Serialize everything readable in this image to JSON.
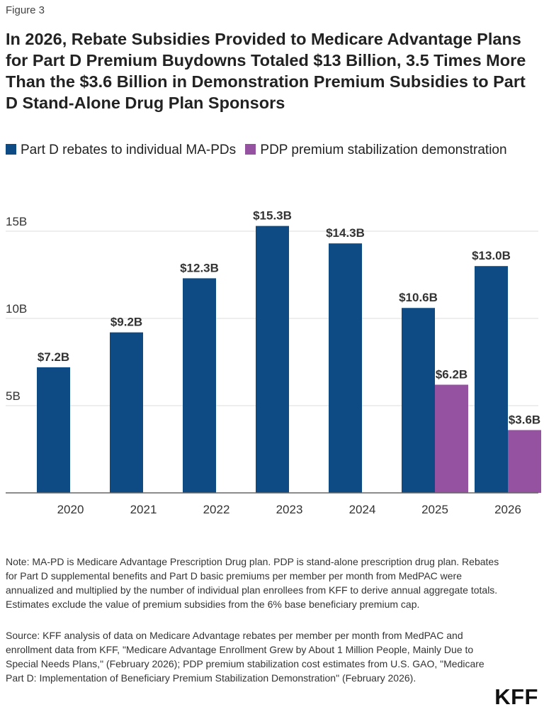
{
  "figure_label": "Figure 3",
  "title": "In 2026, Rebate Subsidies Provided to Medicare Advantage Plans for Part D Premium Buydowns Totaled $13 Billion, 3.5 Times More Than the $3.6 Billion in Demonstration Premium Subsidies to Part D Stand-Alone Drug Plan Sponsors",
  "colors": {
    "series1": "#0e4a83",
    "series2": "#9452a0",
    "grid": "#dddddd",
    "axis": "#666666"
  },
  "chart_data": {
    "type": "bar",
    "categories": [
      "2020",
      "2021",
      "2022",
      "2023",
      "2024",
      "2025",
      "2026"
    ],
    "series": [
      {
        "name": "Part D rebates to individual MA-PDs",
        "values": [
          7.2,
          9.2,
          12.3,
          15.3,
          14.3,
          10.6,
          13.0
        ],
        "labels": [
          "$7.2B",
          "$9.2B",
          "$12.3B",
          "$15.3B",
          "$14.3B",
          "$10.6B",
          "$13.0B"
        ]
      },
      {
        "name": "PDP premium stabilization demonstration",
        "values": [
          null,
          null,
          null,
          null,
          null,
          6.2,
          3.6
        ],
        "labels": [
          null,
          null,
          null,
          null,
          null,
          "$6.2B",
          "$3.6B"
        ]
      }
    ],
    "yticks": [
      5,
      10,
      15
    ],
    "ytick_labels": [
      "5B",
      "10B",
      "15B"
    ],
    "ylim": [
      0,
      16.5
    ],
    "legend_position": "top-left",
    "grid": true
  },
  "note": "Note: MA-PD is Medicare Advantage Prescription Drug plan. PDP is stand-alone prescription drug plan. Rebates for Part D supplemental benefits and Part D basic premiums per member per month from MedPAC were annualized and multiplied by the number of individual plan enrollees from KFF to derive annual aggregate totals. Estimates exclude the value of premium subsidies from the 6% base beneficiary premium cap.",
  "source": "Source: KFF analysis of data on Medicare Advantage rebates per member per month from MedPAC and enrollment data from KFF, \"Medicare Advantage Enrollment Grew by About 1 Million People, Mainly Due to Special Needs Plans,\" (February 2026); PDP premium stabilization cost estimates from U.S. GAO, \"Medicare Part D: Implementation of Beneficiary Premium Stabilization Demonstration\" (February 2026).",
  "logo": "KFF"
}
